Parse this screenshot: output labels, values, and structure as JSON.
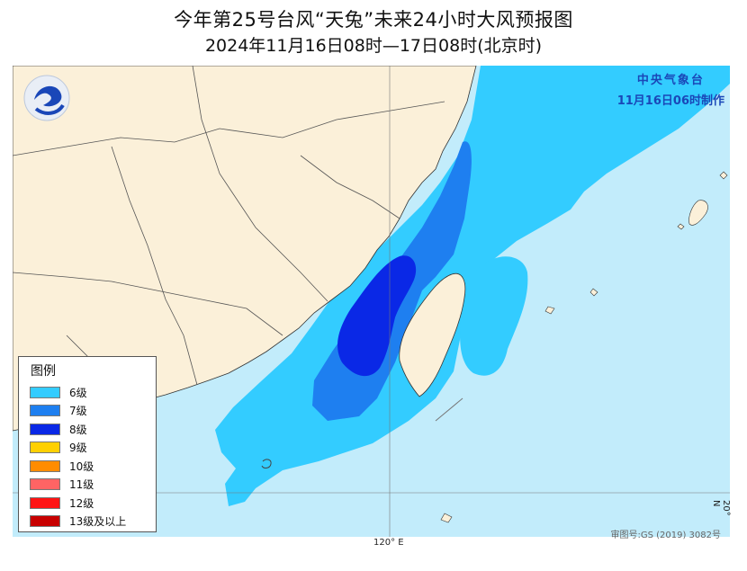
{
  "header": {
    "title": "今年第25号台风“天兔”未来24小时大风预报图",
    "subtitle": "2024年11月16日08时—17日08时(北京时)"
  },
  "issuer": {
    "name": "中央气象台",
    "time": "11月16日06时制作"
  },
  "legend": {
    "title": "图例",
    "items": [
      {
        "label": "6级",
        "color": "#33ccff"
      },
      {
        "label": "7级",
        "color": "#1e7ff0"
      },
      {
        "label": "8级",
        "color": "#0a28e6"
      },
      {
        "label": "9级",
        "color": "#ffd000"
      },
      {
        "label": "10级",
        "color": "#ff8c00"
      },
      {
        "label": "11级",
        "color": "#ff6464"
      },
      {
        "label": "12级",
        "color": "#ff1414"
      },
      {
        "label": "13级及以上",
        "color": "#c80000"
      }
    ]
  },
  "grid": {
    "lon_label": "120° E",
    "lat_label": "20° N"
  },
  "approval_number": "审图号:GS (2019) 3082号",
  "colors": {
    "sea": "#c2ecfb",
    "land": "#fbf0d9",
    "border": "#333333"
  }
}
